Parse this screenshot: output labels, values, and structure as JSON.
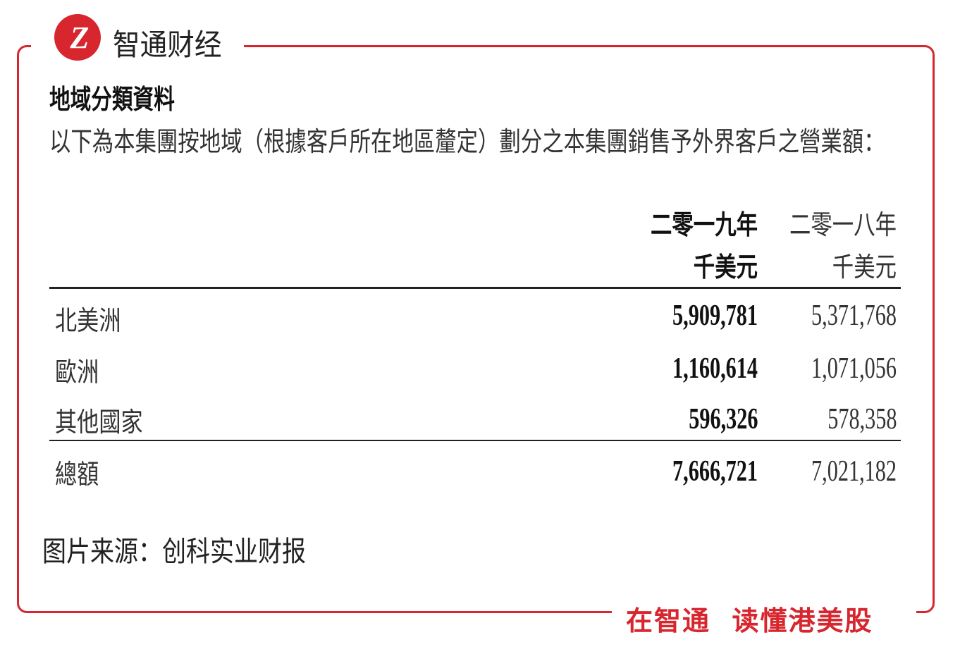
{
  "brand": {
    "name": "智通财经",
    "logo_text": "Z",
    "accent": "#d7262e"
  },
  "slogan": "在智通  读懂港美股",
  "title": "地域分類資料",
  "subtitle": "以下為本集團按地域（根據客戶所在地區釐定）劃分之本集團銷售予外界客戶之營業額：",
  "table": {
    "columns": [
      {
        "year": "二零一九年",
        "unit": "千美元"
      },
      {
        "year": "二零一八年",
        "unit": "千美元"
      }
    ],
    "rows": [
      {
        "label": "北美洲",
        "v2019": "5,909,781",
        "v2018": "5,371,768"
      },
      {
        "label": "歐洲",
        "v2019": "1,160,614",
        "v2018": "1,071,056"
      },
      {
        "label": "其他國家",
        "v2019": "596,326",
        "v2018": "578,358"
      }
    ],
    "total": {
      "label": "總額",
      "v2019": "7,666,721",
      "v2018": "7,021,182"
    }
  },
  "source": "图片来源：创科实业财报"
}
